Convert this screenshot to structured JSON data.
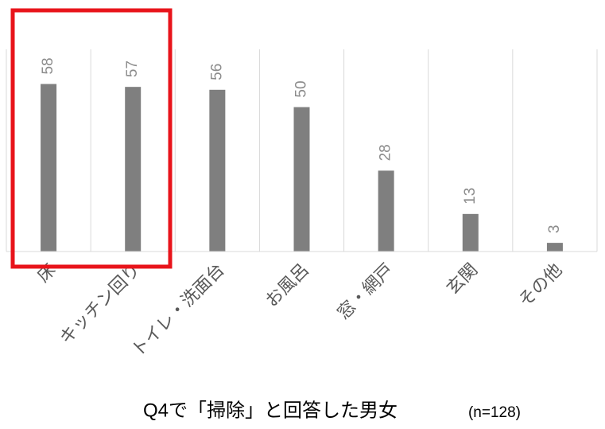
{
  "chart_data": {
    "type": "bar",
    "title": "Q4で「掃除」と回答した男女",
    "subtitle": "(n=128)",
    "categories": [
      "床",
      "キッチン回り",
      "トイレ・洗面台",
      "お風呂",
      "窓・網戸",
      "玄関",
      "その他"
    ],
    "values": [
      58,
      57,
      56,
      50,
      28,
      13,
      3
    ],
    "color": "#7f7f7f",
    "ylim": [
      0,
      70
    ]
  }
}
